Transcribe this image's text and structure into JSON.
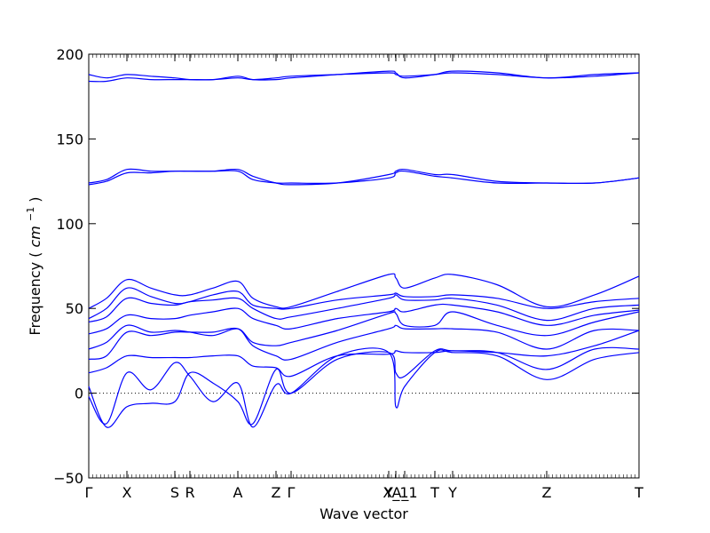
{
  "chart_data": {
    "type": "line",
    "xlabel": "Wave vector",
    "ylabel": "Frequency",
    "ylabel_unit_base": "cm",
    "ylabel_unit_exp": "−1",
    "ylim": [
      -50,
      200
    ],
    "yticks": [
      -50,
      0,
      50,
      100,
      150,
      200
    ],
    "xlim": [
      0,
      6.2
    ],
    "xticks": [
      {
        "x": 0.0,
        "label": "Γ"
      },
      {
        "x": 0.43,
        "label": "X"
      },
      {
        "x": 0.97,
        "label": "S"
      },
      {
        "x": 1.14,
        "label": "R"
      },
      {
        "x": 1.68,
        "label": "A"
      },
      {
        "x": 2.11,
        "label": "Z"
      },
      {
        "x": 2.28,
        "label": "Γ"
      },
      {
        "x": 3.38,
        "label": "Y"
      },
      {
        "x": 3.46,
        "label": "X_1"
      },
      {
        "x": 3.56,
        "label": "A_1"
      },
      {
        "x": 3.9,
        "label": "T"
      },
      {
        "x": 4.1,
        "label": "Y"
      },
      {
        "x": 5.16,
        "label": "Z"
      },
      {
        "x": 6.2,
        "label": "T"
      }
    ],
    "zero_line": {
      "y": 0,
      "style": "dotted"
    },
    "series_color": "#0000ff",
    "series": [
      {
        "x": [
          0,
          0.2,
          0.43,
          0.7,
          0.97,
          1.14,
          1.4,
          1.68,
          1.85,
          2.11,
          2.28,
          2.8,
          3.38,
          3.46,
          3.56,
          3.9,
          4.1,
          4.6,
          5.16,
          5.7,
          6.2
        ],
        "y": [
          -2,
          -18,
          12,
          2,
          18,
          10,
          -5,
          6,
          -20,
          5,
          0,
          22,
          24,
          -8,
          4,
          24,
          24,
          22,
          8,
          20,
          24
        ]
      },
      {
        "x": [
          0,
          0.2,
          0.43,
          0.7,
          0.97,
          1.14,
          1.4,
          1.68,
          1.85,
          2.11,
          2.28,
          2.8,
          3.38,
          3.46,
          3.56,
          3.9,
          4.1,
          4.6,
          5.16,
          5.7,
          6.2
        ],
        "y": [
          4,
          -20,
          -8,
          -6,
          -5,
          12,
          6,
          -5,
          -18,
          14,
          0,
          20,
          24,
          12,
          10,
          25,
          25,
          24,
          14,
          26,
          26
        ]
      },
      {
        "x": [
          0,
          0.2,
          0.43,
          0.7,
          0.97,
          1.14,
          1.4,
          1.68,
          1.85,
          2.11,
          2.28,
          2.8,
          3.38,
          3.46,
          3.56,
          3.9,
          4.1,
          4.6,
          5.16,
          5.7,
          6.2
        ],
        "y": [
          12,
          15,
          22,
          21,
          21,
          21,
          22,
          22,
          16,
          15,
          10,
          22,
          23,
          25,
          24,
          24,
          25,
          24,
          22,
          28,
          37
        ]
      },
      {
        "x": [
          0,
          0.2,
          0.43,
          0.7,
          0.97,
          1.14,
          1.4,
          1.68,
          1.85,
          2.11,
          2.28,
          2.8,
          3.38,
          3.46,
          3.56,
          3.9,
          4.1,
          4.6,
          5.16,
          5.7,
          6.2
        ],
        "y": [
          20,
          22,
          36,
          34,
          36,
          36,
          36,
          38,
          28,
          22,
          20,
          30,
          38,
          40,
          38,
          38,
          38,
          36,
          26,
          37,
          37
        ]
      },
      {
        "x": [
          0,
          0.2,
          0.43,
          0.7,
          0.97,
          1.14,
          1.4,
          1.68,
          1.85,
          2.11,
          2.28,
          2.8,
          3.38,
          3.46,
          3.56,
          3.9,
          4.1,
          4.6,
          5.16,
          5.7,
          6.2
        ],
        "y": [
          26,
          30,
          40,
          36,
          37,
          36,
          34,
          38,
          30,
          28,
          30,
          37,
          47,
          47,
          40,
          40,
          48,
          40,
          34,
          42,
          48
        ]
      },
      {
        "x": [
          0,
          0.2,
          0.43,
          0.7,
          0.97,
          1.14,
          1.4,
          1.68,
          1.85,
          2.11,
          2.28,
          2.8,
          3.38,
          3.46,
          3.56,
          3.9,
          4.1,
          4.6,
          5.16,
          5.7,
          6.2
        ],
        "y": [
          35,
          38,
          46,
          44,
          44,
          46,
          48,
          50,
          44,
          40,
          38,
          44,
          48,
          50,
          48,
          52,
          52,
          48,
          40,
          46,
          49
        ]
      },
      {
        "x": [
          0,
          0.2,
          0.43,
          0.7,
          0.97,
          1.14,
          1.4,
          1.68,
          1.85,
          2.11,
          2.28,
          2.8,
          3.38,
          3.46,
          3.56,
          3.9,
          4.1,
          4.6,
          5.16,
          5.7,
          6.2
        ],
        "y": [
          42,
          45,
          56,
          53,
          52,
          54,
          55,
          56,
          50,
          44,
          45,
          50,
          56,
          58,
          55,
          55,
          56,
          52,
          43,
          50,
          52
        ]
      },
      {
        "x": [
          0,
          0.2,
          0.43,
          0.7,
          0.97,
          1.14,
          1.4,
          1.68,
          1.85,
          2.11,
          2.28,
          2.8,
          3.38,
          3.46,
          3.56,
          3.9,
          4.1,
          4.6,
          5.16,
          5.7,
          6.2
        ],
        "y": [
          44,
          50,
          62,
          57,
          53,
          54,
          58,
          60,
          52,
          50,
          50,
          55,
          58,
          59,
          57,
          57,
          58,
          56,
          50,
          54,
          56
        ]
      },
      {
        "x": [
          0,
          0.2,
          0.43,
          0.7,
          0.97,
          1.14,
          1.4,
          1.68,
          1.85,
          2.11,
          2.28,
          2.8,
          3.38,
          3.46,
          3.56,
          3.9,
          4.1,
          4.6,
          5.16,
          5.7,
          6.2
        ],
        "y": [
          50,
          56,
          67,
          62,
          58,
          58,
          62,
          66,
          56,
          51,
          51,
          60,
          70,
          68,
          62,
          68,
          70,
          64,
          51,
          58,
          69
        ]
      },
      {
        "x": [
          0,
          0.2,
          0.43,
          0.7,
          0.97,
          1.14,
          1.4,
          1.68,
          1.85,
          2.11,
          2.28,
          2.8,
          3.38,
          3.46,
          3.56,
          3.9,
          4.1,
          4.6,
          5.16,
          5.7,
          6.2
        ],
        "y": [
          124,
          126,
          132,
          131,
          131,
          131,
          131,
          131,
          126,
          124,
          124,
          124,
          127,
          130,
          131,
          128,
          127,
          124,
          124,
          124,
          127
        ]
      },
      {
        "x": [
          0,
          0.2,
          0.43,
          0.7,
          0.97,
          1.14,
          1.4,
          1.68,
          1.85,
          2.11,
          2.28,
          2.8,
          3.38,
          3.46,
          3.56,
          3.9,
          4.1,
          4.6,
          5.16,
          5.7,
          6.2
        ],
        "y": [
          123,
          125,
          130,
          130,
          131,
          131,
          131,
          132,
          128,
          124,
          123,
          124,
          129,
          131,
          132,
          129,
          129,
          125,
          124,
          124,
          127
        ]
      },
      {
        "x": [
          0,
          0.2,
          0.43,
          0.7,
          0.97,
          1.14,
          1.4,
          1.68,
          1.85,
          2.11,
          2.28,
          2.8,
          3.38,
          3.46,
          3.56,
          3.9,
          4.1,
          4.6,
          5.16,
          5.7,
          6.2
        ],
        "y": [
          184,
          184,
          186,
          185,
          185,
          185,
          185,
          186,
          185,
          186,
          187,
          188,
          189,
          188,
          187,
          188,
          189,
          188,
          186,
          187,
          189
        ]
      },
      {
        "x": [
          0,
          0.2,
          0.43,
          0.7,
          0.97,
          1.14,
          1.4,
          1.68,
          1.85,
          2.11,
          2.28,
          2.8,
          3.38,
          3.46,
          3.56,
          3.9,
          4.1,
          4.6,
          5.16,
          5.7,
          6.2
        ],
        "y": [
          188,
          186,
          188,
          187,
          186,
          185,
          185,
          187,
          185,
          185,
          186,
          188,
          190,
          189,
          186,
          188,
          190,
          189,
          186,
          188,
          189
        ]
      }
    ]
  }
}
